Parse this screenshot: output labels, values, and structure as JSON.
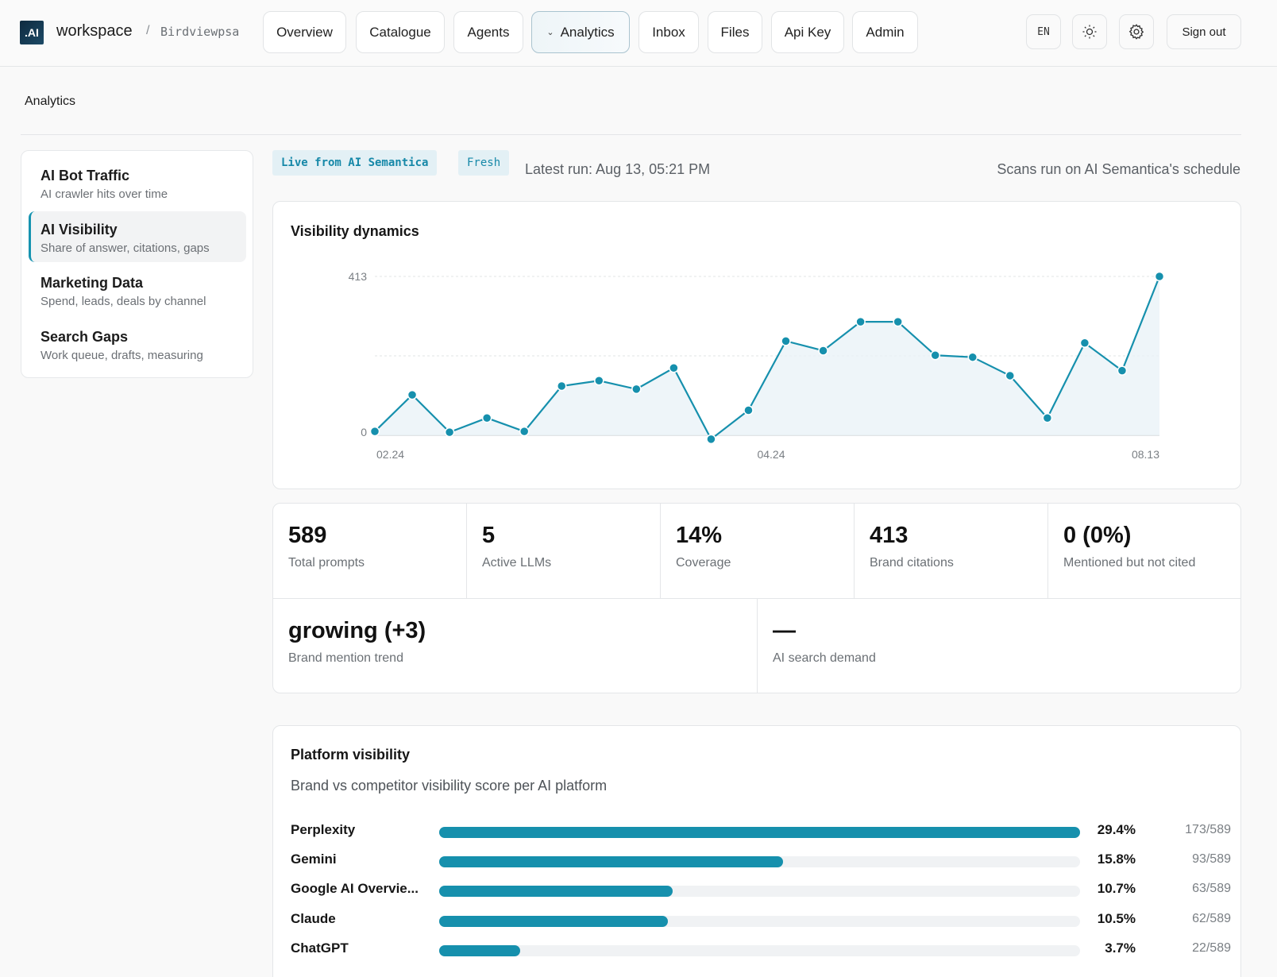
{
  "header": {
    "logo_text": ".AI",
    "brand": "workspace",
    "separator": "/",
    "workspace_name": "Birdviewpsa",
    "nav": [
      {
        "label": "Overview"
      },
      {
        "label": "Catalogue"
      },
      {
        "label": "Agents"
      },
      {
        "label": "Analytics",
        "active": true
      },
      {
        "label": "Inbox"
      },
      {
        "label": "Files"
      },
      {
        "label": "Api Key"
      },
      {
        "label": "Admin"
      }
    ],
    "lang": "EN",
    "theme_icon": "sun-icon",
    "settings_icon": "gear-icon",
    "sign_out": "Sign out"
  },
  "page": {
    "title": "Analytics"
  },
  "sidebar": {
    "items": [
      {
        "title": "AI Bot Traffic",
        "subtitle": "AI crawler hits over time"
      },
      {
        "title": "AI Visibility",
        "subtitle": "Share of answer, citations, gaps",
        "active": true
      },
      {
        "title": "Marketing Data",
        "subtitle": "Spend, leads, deals by channel"
      },
      {
        "title": "Search Gaps",
        "subtitle": "Work queue, drafts, measuring"
      }
    ]
  },
  "status": {
    "live_badge": "Live from AI Semantica",
    "fresh_badge": "Fresh",
    "latest_run": "Latest run: Aug 13, 05:21 PM",
    "schedule": "Scans run on AI Semantica's schedule"
  },
  "visibility_card": {
    "title": "Visibility dynamics"
  },
  "chart_data": {
    "type": "line",
    "title": "Visibility dynamics",
    "y_ticks": [
      "413",
      "0"
    ],
    "x_ticks": [
      "02.24",
      "04.24",
      "08.13"
    ],
    "ylim": [
      0,
      413
    ],
    "grid": true,
    "line_color": "#1690ad",
    "values": [
      10,
      105,
      8,
      45,
      10,
      128,
      142,
      120,
      175,
      -10,
      65,
      245,
      220,
      295,
      295,
      208,
      203,
      155,
      45,
      240,
      168,
      413
    ]
  },
  "metrics": [
    {
      "value": "589",
      "label": "Total prompts"
    },
    {
      "value": "5",
      "label": "Active LLMs"
    },
    {
      "value": "14%",
      "label": "Coverage"
    },
    {
      "value": "413",
      "label": "Brand citations"
    },
    {
      "value": "0 (0%)",
      "label": "Mentioned but not cited"
    }
  ],
  "metrics_row2": [
    {
      "value": "growing (+3)",
      "label": "Brand mention trend"
    },
    {
      "value": "—",
      "label": "AI search demand"
    }
  ],
  "platform_card": {
    "title": "Platform visibility",
    "subtitle": "Brand vs competitor visibility score per AI platform",
    "rows": [
      {
        "name": "Perplexity",
        "pct": "29.4%",
        "count": "173/589",
        "fill": 1.0
      },
      {
        "name": "Gemini",
        "pct": "15.8%",
        "count": "93/589",
        "fill": 0.537
      },
      {
        "name": "Google AI Overvie...",
        "pct": "10.7%",
        "count": "63/589",
        "fill": 0.364
      },
      {
        "name": "Claude",
        "pct": "10.5%",
        "count": "62/589",
        "fill": 0.357
      },
      {
        "name": "ChatGPT",
        "pct": "3.7%",
        "count": "22/589",
        "fill": 0.127
      }
    ]
  },
  "colors": {
    "accent": "#1690ad",
    "badge_bg": "#e3f0f5"
  }
}
